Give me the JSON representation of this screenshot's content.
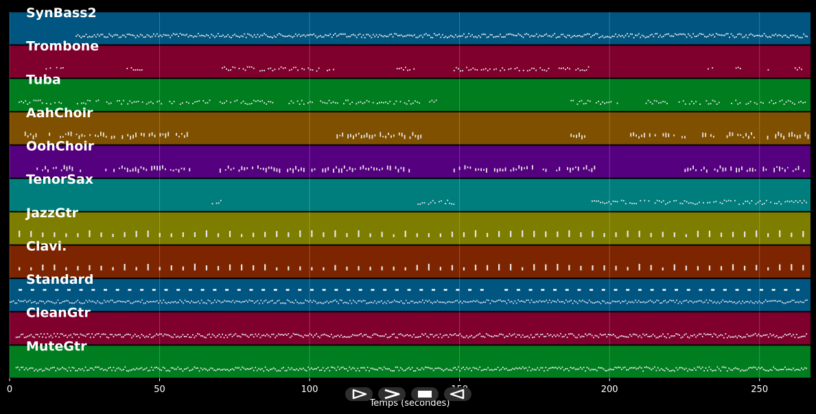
{
  "chart_data": {
    "type": "piano-roll",
    "xlabel": "Temps (secondes)",
    "xlim": [
      0,
      267
    ],
    "xticks": [
      0,
      50,
      100,
      150,
      200,
      250
    ],
    "grid": true,
    "tracks": [
      {
        "name": "SynBass2",
        "color": "#005581",
        "pattern": "dense",
        "segments": [
          [
            22,
            266
          ]
        ]
      },
      {
        "name": "Trombone",
        "color": "#7f002d",
        "pattern": "sparse-clusters",
        "segments": [
          [
            12,
            18
          ],
          [
            39,
            44
          ],
          [
            70,
            108
          ],
          [
            129,
            135
          ],
          [
            148,
            193
          ],
          [
            232,
            235
          ],
          [
            242,
            244
          ],
          [
            252,
            254
          ],
          [
            261,
            264
          ]
        ]
      },
      {
        "name": "Tuba",
        "color": "#007d1f",
        "pattern": "clusters",
        "segments": [
          [
            3,
            17
          ],
          [
            21,
            88
          ],
          [
            93,
            142
          ],
          [
            187,
            203
          ],
          [
            212,
            219
          ],
          [
            223,
            266
          ]
        ]
      },
      {
        "name": "AahChoir",
        "color": "#7f5000",
        "pattern": "blocks",
        "segments": [
          [
            5,
            60
          ],
          [
            109,
            137
          ],
          [
            187,
            194
          ],
          [
            206,
            226
          ],
          [
            230,
            266
          ]
        ]
      },
      {
        "name": "OohChoir",
        "color": "#55007f",
        "pattern": "blocks",
        "segments": [
          [
            9,
            25
          ],
          [
            31,
            60
          ],
          [
            70,
            136
          ],
          [
            148,
            195
          ],
          [
            225,
            266
          ]
        ]
      },
      {
        "name": "TenorSax",
        "color": "#007d7d",
        "pattern": "sparse-clusters",
        "segments": [
          [
            66,
            71
          ],
          [
            136,
            148
          ],
          [
            194,
            266
          ]
        ]
      },
      {
        "name": "JazzGtr",
        "color": "#7d7d00",
        "pattern": "chord-ticks",
        "segments": [
          [
            2,
            266
          ]
        ]
      },
      {
        "name": "Clavi.",
        "color": "#7d2500",
        "pattern": "chord-ticks",
        "segments": [
          [
            2,
            266
          ]
        ]
      },
      {
        "name": "Standard",
        "color": "#005581",
        "pattern": "drums",
        "segments": [
          [
            0,
            266
          ]
        ]
      },
      {
        "name": "CleanGtr",
        "color": "#7f002d",
        "pattern": "dense",
        "segments": [
          [
            2,
            266
          ]
        ]
      },
      {
        "name": "MuteGtr",
        "color": "#007d1f",
        "pattern": "dense",
        "segments": [
          [
            2,
            266
          ]
        ]
      }
    ]
  },
  "controls": [
    {
      "name": "play",
      "icon": "play-icon"
    },
    {
      "name": "fast-forward",
      "icon": "fast-forward-icon"
    },
    {
      "name": "stop",
      "icon": "stop-icon"
    },
    {
      "name": "rewind",
      "icon": "rewind-icon"
    }
  ]
}
